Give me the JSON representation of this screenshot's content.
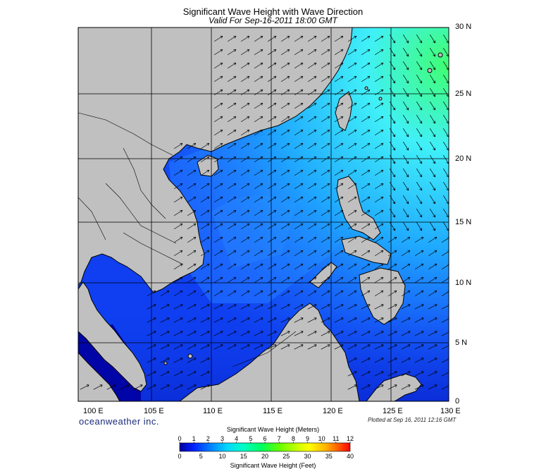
{
  "title": "Significant Wave Height with Wave Direction",
  "subtitle": "Valid For Sep-16-2011 18:00 GMT",
  "lon_labels": [
    "100 E",
    "105 E",
    "110 E",
    "115 E",
    "120 E",
    "125 E",
    "130 E"
  ],
  "lat_labels": [
    "30 N",
    "25 N",
    "20 N",
    "15 N",
    "10 N",
    "5 N",
    "0"
  ],
  "brand": "oceanweather inc.",
  "plotted": "Plotted at Sep 16, 2011 12:16 GMT",
  "colorbar": {
    "meters_title": "Significant Wave Height (Meters)",
    "meters": [
      "0",
      "1",
      "2",
      "3",
      "4",
      "5",
      "6",
      "7",
      "8",
      "9",
      "10",
      "11",
      "12"
    ],
    "feet": [
      "0",
      "5",
      "10",
      "15",
      "20",
      "25",
      "30",
      "35",
      "40"
    ],
    "feet_title": "Significant Wave Height (Feet)",
    "colors": [
      "#0000a0",
      "#0030ff",
      "#0090ff",
      "#00e0ff",
      "#00ffb0",
      "#40ff40",
      "#a0ff00",
      "#ffff00",
      "#ffb000",
      "#ff5000",
      "#ff0000"
    ]
  },
  "colors": {
    "land": "#c0c0c0",
    "ocean_base": "#0f3ff0",
    "ocean_light": "#1f6bff",
    "swell": "#40f0f8",
    "deep": "#0000a0"
  }
}
